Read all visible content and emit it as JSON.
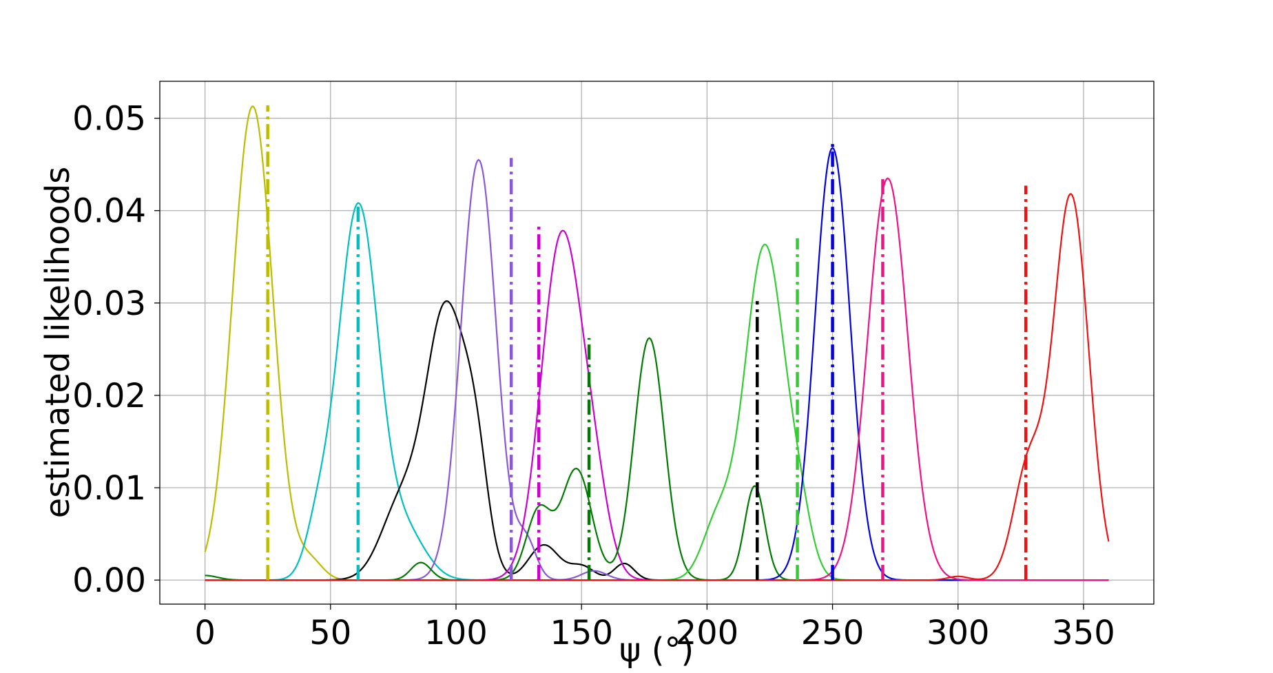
{
  "chart_data": {
    "type": "line",
    "title": "",
    "xlabel": "ψ (°)",
    "ylabel": "estimated likelihoods",
    "xlim": [
      -18,
      378
    ],
    "ylim": [
      -0.0026,
      0.054
    ],
    "xticks": [
      0,
      50,
      100,
      150,
      200,
      250,
      300,
      350
    ],
    "xtick_labels": [
      "0",
      "50",
      "100",
      "150",
      "200",
      "250",
      "300",
      "350"
    ],
    "yticks": [
      0.0,
      0.01,
      0.02,
      0.03,
      0.04,
      0.05
    ],
    "ytick_labels": [
      "0.00",
      "0.01",
      "0.02",
      "0.03",
      "0.04",
      "0.05"
    ],
    "grid": true,
    "legend": "none",
    "series": [
      {
        "color": "#bcbd00",
        "peaks": [
          [
            19,
            0.0513,
            8
          ],
          [
            42,
            0.002,
            5
          ]
        ],
        "marker_x": 25,
        "marker_top": 0.0514
      },
      {
        "color": "#00bfbf",
        "peaks": [
          [
            61,
            0.0405,
            8
          ],
          [
            45,
            0.005,
            5
          ],
          [
            80,
            0.005,
            8
          ]
        ],
        "marker_x": 61,
        "marker_top": 0.0408
      },
      {
        "color": "#000000",
        "peaks": [
          [
            96,
            0.029,
            8
          ],
          [
            78,
            0.008,
            8
          ],
          [
            108,
            0.01,
            5
          ],
          [
            135,
            0.0038,
            6
          ],
          [
            150,
            0.0015,
            5
          ],
          [
            167,
            0.0018,
            4
          ]
        ],
        "marker_x": 220,
        "marker_top": 0.0302
      },
      {
        "color": "#8a58d4",
        "peaks": [
          [
            109,
            0.0455,
            7
          ],
          [
            128,
            0.004,
            4
          ],
          [
            155,
            0.001,
            5
          ]
        ],
        "marker_x": 122,
        "marker_top": 0.0457
      },
      {
        "color": "#cc00cc",
        "peaks": [
          [
            142,
            0.037,
            8
          ],
          [
            155,
            0.008,
            6
          ]
        ],
        "marker_x": 133,
        "marker_top": 0.0385
      },
      {
        "color": "#007a00",
        "peaks": [
          [
            0,
            0.0005,
            5
          ],
          [
            86,
            0.0019,
            4
          ],
          [
            133,
            0.0075,
            5
          ],
          [
            148,
            0.012,
            6
          ],
          [
            177,
            0.0262,
            6
          ],
          [
            219,
            0.0102,
            4
          ]
        ],
        "marker_x": 153,
        "marker_top": 0.0262
      },
      {
        "color": "#33cc33",
        "peaks": [
          [
            223,
            0.0362,
            8
          ],
          [
            204,
            0.006,
            6
          ],
          [
            237,
            0.005,
            5
          ]
        ],
        "marker_x": 236,
        "marker_top": 0.037
      },
      {
        "color": "#0000e0",
        "peaks": [
          [
            250,
            0.0468,
            7
          ]
        ],
        "marker_x": 250,
        "marker_top": 0.0472
      },
      {
        "color": "#ee1188",
        "peaks": [
          [
            272,
            0.0435,
            8
          ]
        ],
        "marker_x": 270,
        "marker_top": 0.0437
      },
      {
        "color": "#ee1111",
        "peaks": [
          [
            345,
            0.0416,
            7
          ],
          [
            328,
            0.012,
            6
          ],
          [
            300,
            0.0004,
            4
          ]
        ],
        "marker_x": 327,
        "marker_top": 0.0427
      }
    ]
  }
}
